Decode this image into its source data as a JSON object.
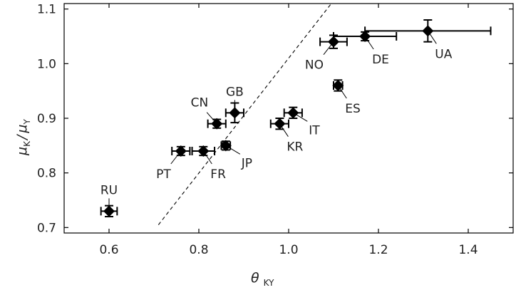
{
  "chart_data": {
    "type": "scatter",
    "xlabel": {
      "symbol": "θ",
      "subscript": "KY"
    },
    "ylabel": {
      "symbol1": "μ",
      "sub1": "K",
      "slash": "/",
      "symbol2": "μ",
      "sub2": "Y"
    },
    "xlim": [
      0.5,
      1.5
    ],
    "ylim": [
      0.69,
      1.11
    ],
    "x_ticks": [
      {
        "value": 0.6,
        "label": "0.6"
      },
      {
        "value": 0.8,
        "label": "0.8"
      },
      {
        "value": 1.0,
        "label": "1.0"
      },
      {
        "value": 1.2,
        "label": "1.2"
      },
      {
        "value": 1.4,
        "label": "1.4"
      }
    ],
    "y_ticks": [
      {
        "value": 0.7,
        "label": "0.7"
      },
      {
        "value": 0.8,
        "label": "0.8"
      },
      {
        "value": 0.9,
        "label": "0.9"
      },
      {
        "value": 1.0,
        "label": "1.0"
      },
      {
        "value": 1.1,
        "label": "1.1"
      }
    ],
    "points": [
      {
        "label": "RU",
        "x": 0.6,
        "y": 0.73,
        "xerr": 0.018,
        "yerr": 0.01,
        "dir": "up"
      },
      {
        "label": "PT",
        "x": 0.76,
        "y": 0.84,
        "xerr": 0.02,
        "yerr": 0.008,
        "dir": "down-left"
      },
      {
        "label": "FR",
        "x": 0.81,
        "y": 0.84,
        "xerr": 0.025,
        "yerr": 0.008,
        "dir": "down-right"
      },
      {
        "label": "JP",
        "x": 0.86,
        "y": 0.85,
        "xerr": 0.01,
        "yerr": 0.008,
        "dir": "right-down"
      },
      {
        "label": "CN",
        "x": 0.84,
        "y": 0.89,
        "xerr": 0.02,
        "yerr": 0.008,
        "dir": "up-left"
      },
      {
        "label": "GB",
        "x": 0.88,
        "y": 0.91,
        "xerr": 0.02,
        "yerr": 0.018,
        "dir": "up"
      },
      {
        "label": "KR",
        "x": 0.98,
        "y": 0.89,
        "xerr": 0.02,
        "yerr": 0.01,
        "dir": "down-right"
      },
      {
        "label": "IT",
        "x": 1.01,
        "y": 0.91,
        "xerr": 0.02,
        "yerr": 0.01,
        "dir": "right-down"
      },
      {
        "label": "ES",
        "x": 1.11,
        "y": 0.96,
        "xerr": 0.01,
        "yerr": 0.01,
        "dir": "down-right"
      },
      {
        "label": "NO",
        "x": 1.1,
        "y": 1.04,
        "xerr": 0.03,
        "yerr": 0.012,
        "dir": "down-left"
      },
      {
        "label": "DE",
        "x": 1.17,
        "y": 1.05,
        "xerr": 0.07,
        "yerr": 0.008,
        "dir": "down-right"
      },
      {
        "label": "UA",
        "x": 1.31,
        "y": 1.06,
        "xerr": 0.14,
        "yerr": 0.02,
        "dir": "down-right"
      }
    ],
    "reference_line": {
      "style": "dashed",
      "x": [
        0.71,
        1.095
      ],
      "y": [
        0.705,
        1.11
      ]
    },
    "grid": false,
    "legend": "none"
  }
}
